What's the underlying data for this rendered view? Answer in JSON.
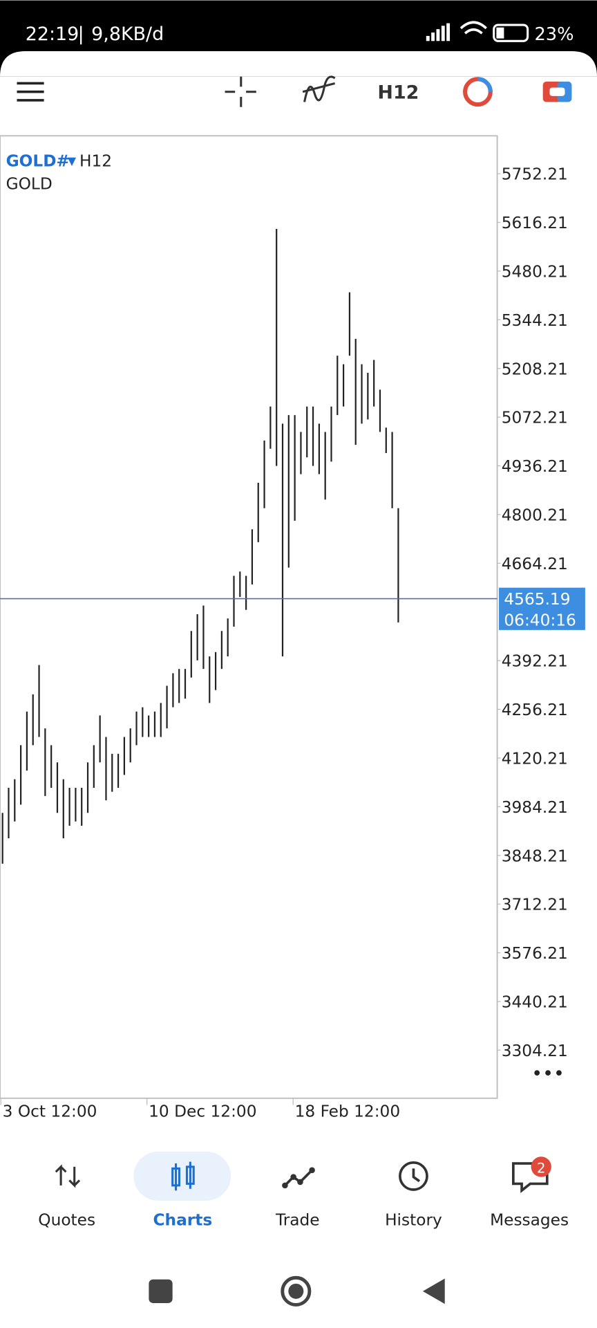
{
  "status_bar": {
    "time": "22:19",
    "network": "9,8KB/d",
    "battery": "23%"
  },
  "toolbar": {
    "timeframe": "H12"
  },
  "chart_data": {
    "type": "ohlc",
    "symbol": "GOLD#",
    "timeframe": "H12",
    "description": "GOLD",
    "color": "#222222",
    "highs": [
      3967,
      4037,
      4061,
      4156,
      4250,
      4298,
      4380,
      4203,
      4156,
      4108,
      4061,
      4037,
      4037,
      4037,
      4108,
      4156,
      4239,
      4179,
      4132,
      4132,
      4179,
      4203,
      4250,
      4262,
      4239,
      4250,
      4274,
      4322,
      4357,
      4369,
      4369,
      4475,
      4522,
      4546,
      4404,
      4416,
      4475,
      4510,
      4629,
      4641,
      4629,
      4759,
      4889,
      5007,
      5102,
      5598,
      5054,
      5078,
      5078,
      5031,
      5102,
      5102,
      5054,
      5031,
      5102,
      5244,
      5220,
      5421,
      5291,
      5220,
      5196,
      5232,
      5149,
      5043,
      5031,
      4818
    ],
    "lows": [
      3825,
      3896,
      3943,
      3990,
      4085,
      4156,
      4179,
      4014,
      4037,
      3967,
      3896,
      3931,
      3943,
      3931,
      3967,
      4037,
      4108,
      4002,
      4026,
      4037,
      4073,
      4108,
      4156,
      4179,
      4179,
      4179,
      4179,
      4203,
      4262,
      4274,
      4286,
      4345,
      4393,
      4369,
      4274,
      4310,
      4369,
      4404,
      4487,
      4570,
      4534,
      4605,
      4723,
      4818,
      4984,
      4936,
      4404,
      4652,
      4783,
      4913,
      4960,
      4936,
      4913,
      4842,
      4948,
      5078,
      5102,
      5244,
      4995,
      5054,
      5066,
      5102,
      5031,
      4972,
      4818,
      4499
    ],
    "ylim": [
      3170,
      5858
    ],
    "yticks": [
      5752.21,
      5616.21,
      5480.21,
      5344.21,
      5208.21,
      5072.21,
      4936.21,
      4800.21,
      4664.21,
      4392.21,
      4256.21,
      4120.21,
      3984.21,
      3848.21,
      3712.21,
      3576.21,
      3440.21,
      3304.21
    ],
    "xticks": [
      {
        "value": 0,
        "label": "3 Oct 12:00"
      },
      {
        "value": 24,
        "label": "10 Dec 12:00"
      },
      {
        "value": 48,
        "label": "18 Feb 12:00"
      }
    ],
    "current_price": 4565.19,
    "countdown": "06:40:16",
    "price_line_color": "#5a6fa0",
    "price_box_color": "#3d8ee0"
  },
  "nav": {
    "items": [
      "Quotes",
      "Charts",
      "Trade",
      "History",
      "Messages"
    ],
    "messages_badge": 2
  }
}
